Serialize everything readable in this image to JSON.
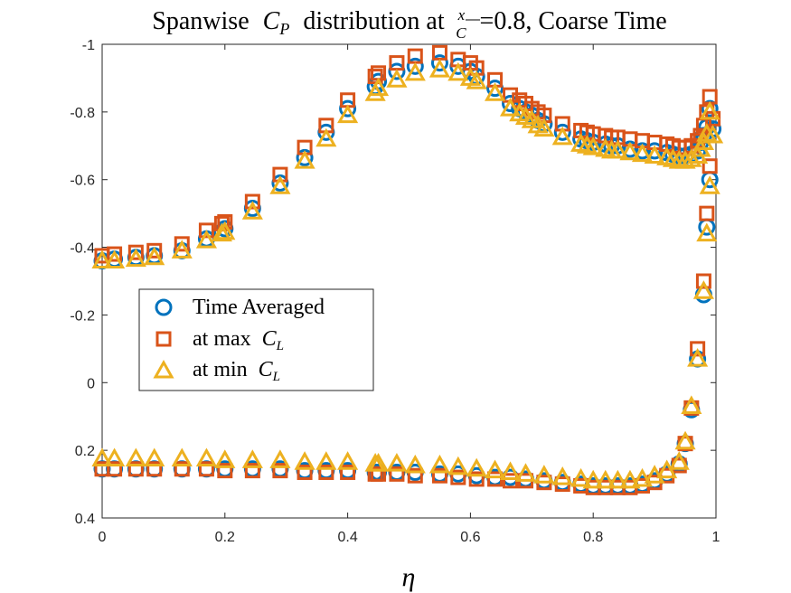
{
  "chart_data": {
    "type": "scatter",
    "title": {
      "prefix": "Spanwise",
      "var": "C",
      "var_sub": "P",
      "middle": "distribution at",
      "frac_num": "x",
      "frac_den": "C",
      "suffix": "=0.8, Coarse Time"
    },
    "xlabel": "η",
    "ylabel": "",
    "xlim": [
      0,
      1
    ],
    "ylim": [
      -1,
      0.4
    ],
    "y_reversed": true,
    "xticks": [
      "0",
      "0.2",
      "0.4",
      "0.6",
      "0.8",
      "1"
    ],
    "yticks": [
      "-1",
      "-0.8",
      "-0.6",
      "-0.4",
      "-0.2",
      "0",
      "0.2",
      "0.4"
    ],
    "legend_position": "center-left",
    "series": [
      {
        "name": "Time Averaged",
        "marker": "circle",
        "color": "#0072BD",
        "upper": [
          [
            0,
            -0.36
          ],
          [
            0.02,
            -0.365
          ],
          [
            0.055,
            -0.37
          ],
          [
            0.085,
            -0.375
          ],
          [
            0.13,
            -0.39
          ],
          [
            0.17,
            -0.425
          ],
          [
            0.195,
            -0.445
          ],
          [
            0.2,
            -0.455
          ],
          [
            0.245,
            -0.515
          ],
          [
            0.29,
            -0.59
          ],
          [
            0.33,
            -0.665
          ],
          [
            0.365,
            -0.74
          ],
          [
            0.4,
            -0.81
          ],
          [
            0.445,
            -0.875
          ],
          [
            0.45,
            -0.89
          ],
          [
            0.48,
            -0.92
          ],
          [
            0.51,
            -0.935
          ],
          [
            0.55,
            -0.945
          ],
          [
            0.58,
            -0.935
          ],
          [
            0.6,
            -0.92
          ],
          [
            0.61,
            -0.905
          ],
          [
            0.64,
            -0.87
          ],
          [
            0.665,
            -0.825
          ],
          [
            0.68,
            -0.81
          ],
          [
            0.69,
            -0.8
          ],
          [
            0.7,
            -0.79
          ],
          [
            0.71,
            -0.775
          ],
          [
            0.72,
            -0.765
          ],
          [
            0.75,
            -0.74
          ],
          [
            0.78,
            -0.72
          ],
          [
            0.79,
            -0.715
          ],
          [
            0.8,
            -0.71
          ],
          [
            0.82,
            -0.705
          ],
          [
            0.83,
            -0.7
          ],
          [
            0.84,
            -0.7
          ],
          [
            0.86,
            -0.69
          ],
          [
            0.88,
            -0.685
          ],
          [
            0.9,
            -0.685
          ],
          [
            0.92,
            -0.68
          ],
          [
            0.93,
            -0.675
          ],
          [
            0.94,
            -0.67
          ],
          [
            0.95,
            -0.67
          ],
          [
            0.96,
            -0.675
          ],
          [
            0.97,
            -0.685
          ],
          [
            0.975,
            -0.71
          ],
          [
            0.98,
            -0.73
          ],
          [
            0.985,
            -0.755
          ],
          [
            0.99,
            -0.81
          ],
          [
            0.995,
            -0.75
          ],
          [
            0.99,
            -0.6
          ],
          [
            0.985,
            -0.46
          ]
        ],
        "lower": [
          [
            0,
            0.255
          ],
          [
            0.02,
            0.255
          ],
          [
            0.055,
            0.255
          ],
          [
            0.085,
            0.255
          ],
          [
            0.13,
            0.255
          ],
          [
            0.17,
            0.255
          ],
          [
            0.2,
            0.255
          ],
          [
            0.245,
            0.255
          ],
          [
            0.29,
            0.255
          ],
          [
            0.33,
            0.26
          ],
          [
            0.365,
            0.26
          ],
          [
            0.4,
            0.26
          ],
          [
            0.445,
            0.265
          ],
          [
            0.45,
            0.265
          ],
          [
            0.48,
            0.265
          ],
          [
            0.51,
            0.265
          ],
          [
            0.55,
            0.27
          ],
          [
            0.58,
            0.27
          ],
          [
            0.61,
            0.275
          ],
          [
            0.64,
            0.28
          ],
          [
            0.665,
            0.28
          ],
          [
            0.69,
            0.285
          ],
          [
            0.72,
            0.29
          ],
          [
            0.75,
            0.295
          ],
          [
            0.78,
            0.3
          ],
          [
            0.8,
            0.305
          ],
          [
            0.82,
            0.305
          ],
          [
            0.84,
            0.305
          ],
          [
            0.86,
            0.305
          ],
          [
            0.88,
            0.3
          ],
          [
            0.9,
            0.29
          ],
          [
            0.92,
            0.27
          ],
          [
            0.94,
            0.24
          ],
          [
            0.95,
            0.18
          ],
          [
            0.96,
            0.08
          ],
          [
            0.97,
            -0.07
          ],
          [
            0.98,
            -0.26
          ]
        ]
      },
      {
        "name": "at max C_L",
        "label_text": "at max",
        "label_var": "C",
        "label_sub": "L",
        "marker": "square",
        "color": "#D95319",
        "upper": [
          [
            0,
            -0.375
          ],
          [
            0.02,
            -0.38
          ],
          [
            0.055,
            -0.385
          ],
          [
            0.085,
            -0.39
          ],
          [
            0.13,
            -0.41
          ],
          [
            0.17,
            -0.45
          ],
          [
            0.195,
            -0.47
          ],
          [
            0.2,
            -0.475
          ],
          [
            0.245,
            -0.535
          ],
          [
            0.29,
            -0.615
          ],
          [
            0.33,
            -0.695
          ],
          [
            0.365,
            -0.76
          ],
          [
            0.4,
            -0.835
          ],
          [
            0.445,
            -0.905
          ],
          [
            0.45,
            -0.915
          ],
          [
            0.48,
            -0.945
          ],
          [
            0.51,
            -0.965
          ],
          [
            0.55,
            -0.975
          ],
          [
            0.58,
            -0.955
          ],
          [
            0.6,
            -0.945
          ],
          [
            0.61,
            -0.93
          ],
          [
            0.64,
            -0.895
          ],
          [
            0.665,
            -0.85
          ],
          [
            0.68,
            -0.835
          ],
          [
            0.69,
            -0.825
          ],
          [
            0.7,
            -0.81
          ],
          [
            0.71,
            -0.8
          ],
          [
            0.72,
            -0.79
          ],
          [
            0.75,
            -0.765
          ],
          [
            0.78,
            -0.745
          ],
          [
            0.79,
            -0.74
          ],
          [
            0.8,
            -0.735
          ],
          [
            0.82,
            -0.73
          ],
          [
            0.83,
            -0.725
          ],
          [
            0.84,
            -0.725
          ],
          [
            0.86,
            -0.72
          ],
          [
            0.88,
            -0.715
          ],
          [
            0.9,
            -0.71
          ],
          [
            0.92,
            -0.705
          ],
          [
            0.93,
            -0.7
          ],
          [
            0.94,
            -0.695
          ],
          [
            0.95,
            -0.695
          ],
          [
            0.96,
            -0.7
          ],
          [
            0.97,
            -0.715
          ],
          [
            0.975,
            -0.73
          ],
          [
            0.98,
            -0.76
          ],
          [
            0.985,
            -0.8
          ],
          [
            0.99,
            -0.845
          ],
          [
            0.995,
            -0.78
          ],
          [
            0.99,
            -0.64
          ],
          [
            0.985,
            -0.5
          ]
        ],
        "lower": [
          [
            0,
            0.255
          ],
          [
            0.02,
            0.255
          ],
          [
            0.055,
            0.255
          ],
          [
            0.085,
            0.255
          ],
          [
            0.13,
            0.255
          ],
          [
            0.17,
            0.255
          ],
          [
            0.2,
            0.26
          ],
          [
            0.245,
            0.26
          ],
          [
            0.29,
            0.26
          ],
          [
            0.33,
            0.265
          ],
          [
            0.365,
            0.265
          ],
          [
            0.4,
            0.265
          ],
          [
            0.445,
            0.27
          ],
          [
            0.45,
            0.27
          ],
          [
            0.48,
            0.27
          ],
          [
            0.51,
            0.275
          ],
          [
            0.55,
            0.275
          ],
          [
            0.58,
            0.28
          ],
          [
            0.61,
            0.285
          ],
          [
            0.64,
            0.285
          ],
          [
            0.665,
            0.29
          ],
          [
            0.69,
            0.29
          ],
          [
            0.72,
            0.295
          ],
          [
            0.75,
            0.3
          ],
          [
            0.78,
            0.305
          ],
          [
            0.8,
            0.31
          ],
          [
            0.82,
            0.31
          ],
          [
            0.84,
            0.31
          ],
          [
            0.86,
            0.31
          ],
          [
            0.88,
            0.305
          ],
          [
            0.9,
            0.295
          ],
          [
            0.92,
            0.275
          ],
          [
            0.94,
            0.245
          ],
          [
            0.95,
            0.18
          ],
          [
            0.96,
            0.075
          ],
          [
            0.97,
            -0.1
          ],
          [
            0.98,
            -0.3
          ]
        ]
      },
      {
        "name": "at min C_L",
        "label_text": "at min",
        "label_var": "C",
        "label_sub": "L",
        "marker": "triangle",
        "color": "#EDB120",
        "upper": [
          [
            0,
            -0.36
          ],
          [
            0.02,
            -0.36
          ],
          [
            0.055,
            -0.365
          ],
          [
            0.085,
            -0.37
          ],
          [
            0.13,
            -0.39
          ],
          [
            0.17,
            -0.42
          ],
          [
            0.195,
            -0.44
          ],
          [
            0.2,
            -0.445
          ],
          [
            0.245,
            -0.505
          ],
          [
            0.29,
            -0.58
          ],
          [
            0.33,
            -0.655
          ],
          [
            0.365,
            -0.72
          ],
          [
            0.4,
            -0.79
          ],
          [
            0.445,
            -0.855
          ],
          [
            0.45,
            -0.87
          ],
          [
            0.48,
            -0.895
          ],
          [
            0.51,
            -0.915
          ],
          [
            0.55,
            -0.925
          ],
          [
            0.58,
            -0.915
          ],
          [
            0.6,
            -0.9
          ],
          [
            0.61,
            -0.89
          ],
          [
            0.64,
            -0.855
          ],
          [
            0.665,
            -0.81
          ],
          [
            0.68,
            -0.795
          ],
          [
            0.69,
            -0.785
          ],
          [
            0.7,
            -0.775
          ],
          [
            0.71,
            -0.76
          ],
          [
            0.72,
            -0.75
          ],
          [
            0.75,
            -0.725
          ],
          [
            0.78,
            -0.705
          ],
          [
            0.79,
            -0.7
          ],
          [
            0.8,
            -0.695
          ],
          [
            0.82,
            -0.69
          ],
          [
            0.83,
            -0.685
          ],
          [
            0.84,
            -0.685
          ],
          [
            0.86,
            -0.68
          ],
          [
            0.88,
            -0.675
          ],
          [
            0.9,
            -0.67
          ],
          [
            0.92,
            -0.665
          ],
          [
            0.93,
            -0.66
          ],
          [
            0.94,
            -0.655
          ],
          [
            0.95,
            -0.655
          ],
          [
            0.96,
            -0.66
          ],
          [
            0.97,
            -0.67
          ],
          [
            0.975,
            -0.69
          ],
          [
            0.98,
            -0.71
          ],
          [
            0.985,
            -0.735
          ],
          [
            0.99,
            -0.8
          ],
          [
            0.995,
            -0.73
          ],
          [
            0.99,
            -0.58
          ],
          [
            0.985,
            -0.44
          ]
        ],
        "lower": [
          [
            0,
            0.225
          ],
          [
            0.02,
            0.225
          ],
          [
            0.055,
            0.225
          ],
          [
            0.085,
            0.225
          ],
          [
            0.13,
            0.225
          ],
          [
            0.17,
            0.225
          ],
          [
            0.2,
            0.23
          ],
          [
            0.245,
            0.23
          ],
          [
            0.29,
            0.23
          ],
          [
            0.33,
            0.235
          ],
          [
            0.365,
            0.235
          ],
          [
            0.4,
            0.235
          ],
          [
            0.445,
            0.24
          ],
          [
            0.45,
            0.24
          ],
          [
            0.48,
            0.24
          ],
          [
            0.51,
            0.245
          ],
          [
            0.55,
            0.245
          ],
          [
            0.58,
            0.25
          ],
          [
            0.61,
            0.255
          ],
          [
            0.64,
            0.26
          ],
          [
            0.665,
            0.265
          ],
          [
            0.69,
            0.27
          ],
          [
            0.72,
            0.275
          ],
          [
            0.75,
            0.28
          ],
          [
            0.78,
            0.285
          ],
          [
            0.8,
            0.29
          ],
          [
            0.82,
            0.29
          ],
          [
            0.84,
            0.29
          ],
          [
            0.86,
            0.29
          ],
          [
            0.88,
            0.285
          ],
          [
            0.9,
            0.275
          ],
          [
            0.92,
            0.26
          ],
          [
            0.94,
            0.235
          ],
          [
            0.95,
            0.175
          ],
          [
            0.96,
            0.07
          ],
          [
            0.97,
            -0.07
          ],
          [
            0.98,
            -0.27
          ]
        ]
      }
    ]
  }
}
